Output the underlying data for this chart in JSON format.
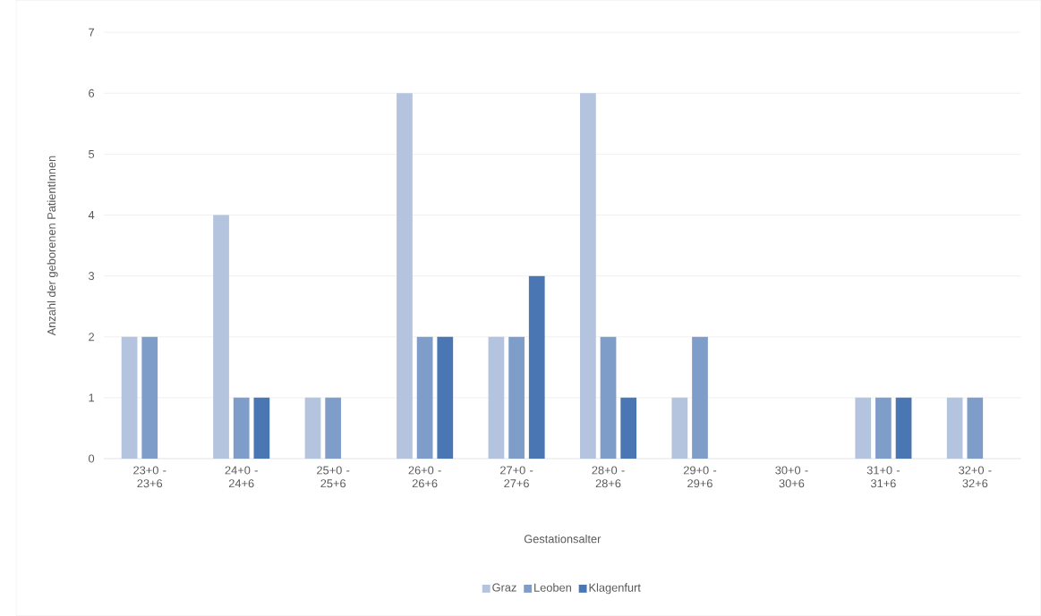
{
  "chart_data": {
    "type": "bar",
    "xlabel": "Gestationsalter",
    "ylabel": "Anzahl der geborenen PatientInnen",
    "categories": [
      "23+0 - 23+6",
      "24+0 - 24+6",
      "25+0 - 25+6",
      "26+0 - 26+6",
      "27+0 - 27+6",
      "28+0 - 28+6",
      "29+0 - 29+6",
      "30+0 - 30+6",
      "31+0 - 31+6",
      "32+0 - 32+6"
    ],
    "series": [
      {
        "name": "Graz",
        "color": "#b4c3de",
        "values": [
          2,
          4,
          1,
          6,
          2,
          6,
          1,
          0,
          1,
          1
        ]
      },
      {
        "name": "Leoben",
        "color": "#7f9dc9",
        "values": [
          2,
          1,
          1,
          2,
          2,
          2,
          2,
          0,
          1,
          1
        ]
      },
      {
        "name": "Klagenfurt",
        "color": "#4a77b4",
        "values": [
          0,
          1,
          0,
          2,
          3,
          1,
          0,
          0,
          1,
          0
        ]
      }
    ],
    "ylim": [
      0,
      7
    ],
    "yticks": [
      0,
      1,
      2,
      3,
      4,
      5,
      6,
      7
    ],
    "grid": "y",
    "legend": "bottom"
  }
}
